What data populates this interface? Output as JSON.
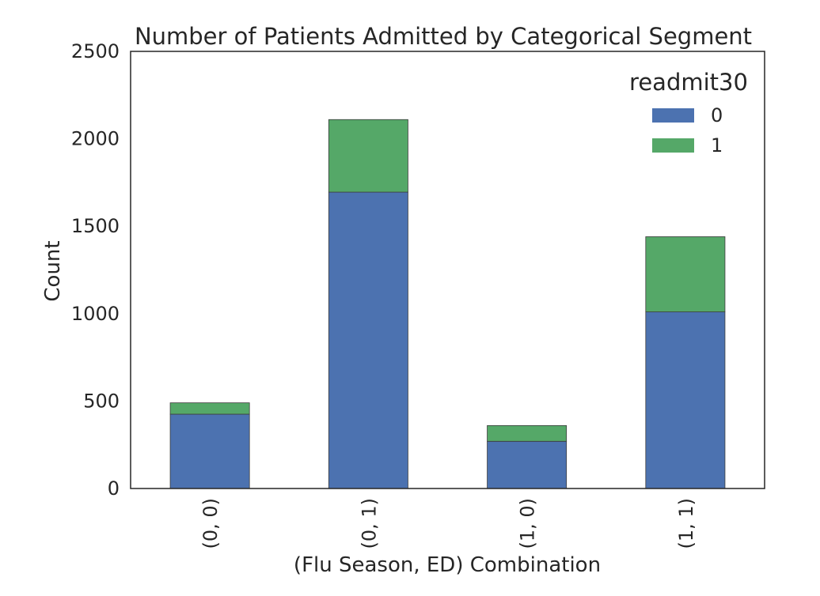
{
  "chart_data": {
    "type": "bar",
    "stacked": true,
    "title": "Number of Patients Admitted by Categorical Segment",
    "xlabel": "(Flu Season, ED) Combination",
    "ylabel": "Count",
    "categories": [
      "(0, 0)",
      "(0, 1)",
      "(1, 0)",
      "(1, 1)"
    ],
    "ylim": [
      0,
      2500
    ],
    "yticks": [
      0,
      500,
      1000,
      1500,
      2000,
      2500
    ],
    "grid": false,
    "legend": {
      "title": "readmit30",
      "placement": "top-right"
    },
    "series": [
      {
        "name": "0",
        "color": "#4c72b0",
        "values": [
          425,
          1695,
          270,
          1010
        ]
      },
      {
        "name": "1",
        "color": "#55a868",
        "values": [
          65,
          415,
          90,
          430
        ]
      }
    ]
  }
}
